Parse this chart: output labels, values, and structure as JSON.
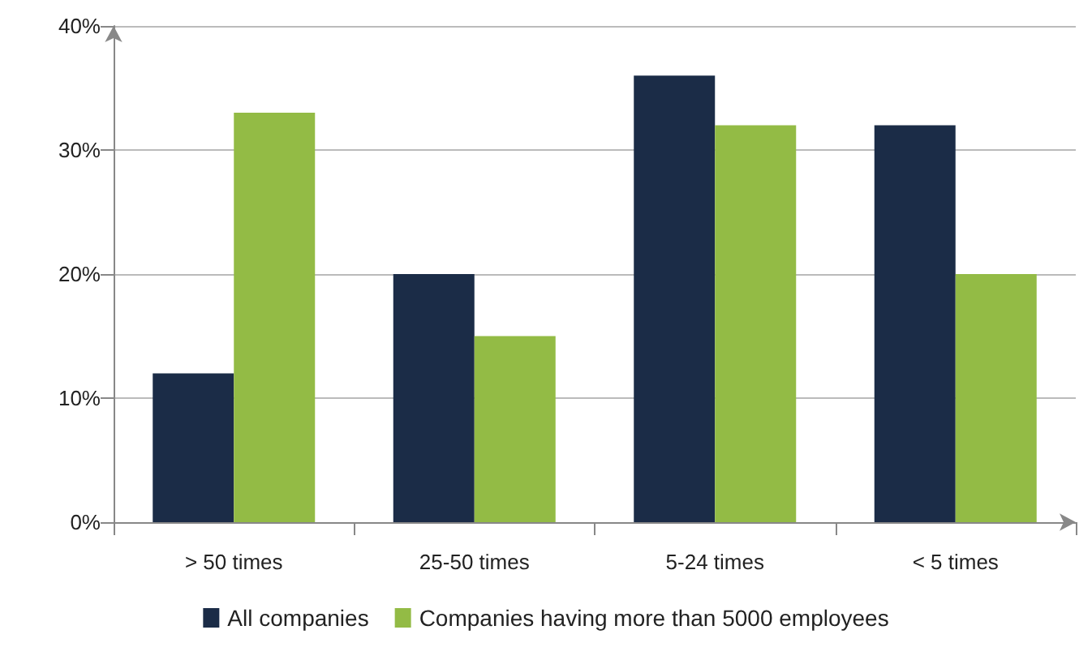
{
  "chart_data": {
    "type": "bar",
    "categories": [
      "> 50 times",
      "25-50 times",
      "5-24 times",
      "< 5 times"
    ],
    "series": [
      {
        "name": "All companies",
        "color": "#1b2c47",
        "values": [
          12,
          20,
          36,
          32
        ]
      },
      {
        "name": "Companies having more than 5000 employees",
        "color": "#93bb45",
        "values": [
          33,
          15,
          32,
          20
        ]
      }
    ],
    "ylim": [
      0,
      40
    ],
    "yticks": [
      {
        "value": 0,
        "label": "0%"
      },
      {
        "value": 10,
        "label": "10%"
      },
      {
        "value": 20,
        "label": "20%"
      },
      {
        "value": 30,
        "label": "30%"
      },
      {
        "value": 40,
        "label": "40%"
      }
    ],
    "grid": "y",
    "legend": "bottom"
  }
}
